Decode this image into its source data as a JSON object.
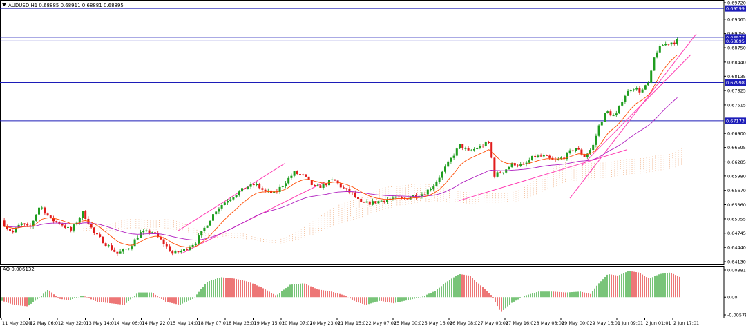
{
  "header": {
    "symbol_line": "AUDUSD,H1  0.68885 0.68911 0.68881 0.68895",
    "ao_label": "AO 0.006132"
  },
  "colors": {
    "bull": "#1f9d1f",
    "bear": "#e11c1c",
    "hline": "#1c1cb8",
    "ema_fast": "#ff4a00",
    "ema_slow": "#b020c0",
    "trend": "#ff3fb4",
    "cloud": "#f0b084",
    "price_tag_bg": "#1c1cb8",
    "price_tag_fg": "#ffffff"
  },
  "chart_data": [
    {
      "type": "candlestick",
      "series_name": "AUDUSD,H1",
      "ylim": [
        0.6413,
        0.6972
      ],
      "y_ticks": [
        "0.69720",
        "0.69365",
        "0.69055",
        "0.68750",
        "0.68440",
        "0.68135",
        "0.67825",
        "0.67515",
        "0.67210",
        "0.66900",
        "0.66595",
        "0.66285",
        "0.65980",
        "0.65670",
        "0.65360",
        "0.65055",
        "0.64745",
        "0.64440",
        "0.64130"
      ],
      "x_ticks": [
        "11 May 2020",
        "12 May 06:01",
        "12 May 22:01",
        "13 May 14:01",
        "14 May 06:01",
        "14 May 22:01",
        "15 May 14:01",
        "18 May 07:01",
        "18 May 23:01",
        "19 May 15:01",
        "20 May 07:01",
        "20 May 23:01",
        "21 May 15:01",
        "22 May 07:01",
        "25 May 00:01",
        "25 May 16:01",
        "26 May 08:01",
        "27 May 00:01",
        "27 May 16:01",
        "28 May 08:01",
        "29 May 00:01",
        "29 May 16:01",
        "1 Jun 09:01",
        "2 Jun 01:01",
        "2 Jun 17:01"
      ],
      "price_path": [
        [
          0,
          0.651
        ],
        [
          10,
          0.649
        ],
        [
          20,
          0.6475
        ],
        [
          32,
          0.6495
        ],
        [
          45,
          0.6485
        ],
        [
          60,
          0.6535
        ],
        [
          75,
          0.6505
        ],
        [
          90,
          0.6495
        ],
        [
          105,
          0.648
        ],
        [
          122,
          0.652
        ],
        [
          138,
          0.6475
        ],
        [
          155,
          0.6452
        ],
        [
          172,
          0.643
        ],
        [
          190,
          0.6445
        ],
        [
          205,
          0.6475
        ],
        [
          222,
          0.6478
        ],
        [
          238,
          0.6455
        ],
        [
          252,
          0.643
        ],
        [
          268,
          0.6438
        ],
        [
          285,
          0.6455
        ],
        [
          300,
          0.649
        ],
        [
          315,
          0.6525
        ],
        [
          330,
          0.6545
        ],
        [
          345,
          0.656
        ],
        [
          360,
          0.6575
        ],
        [
          372,
          0.658
        ],
        [
          385,
          0.6565
        ],
        [
          400,
          0.656
        ],
        [
          415,
          0.6585
        ],
        [
          428,
          0.6605
        ],
        [
          442,
          0.6598
        ],
        [
          458,
          0.6572
        ],
        [
          470,
          0.6578
        ],
        [
          485,
          0.659
        ],
        [
          498,
          0.6572
        ],
        [
          512,
          0.656
        ],
        [
          525,
          0.6538
        ],
        [
          540,
          0.654
        ],
        [
          555,
          0.6545
        ],
        [
          570,
          0.655
        ],
        [
          585,
          0.6548
        ],
        [
          600,
          0.6555
        ],
        [
          615,
          0.656
        ],
        [
          628,
          0.6575
        ],
        [
          640,
          0.66
        ],
        [
          655,
          0.6635
        ],
        [
          668,
          0.6665
        ],
        [
          680,
          0.665
        ],
        [
          695,
          0.666
        ],
        [
          710,
          0.667
        ],
        [
          718,
          0.66
        ],
        [
          730,
          0.6608
        ],
        [
          745,
          0.6625
        ],
        [
          760,
          0.662
        ],
        [
          775,
          0.664
        ],
        [
          790,
          0.664
        ],
        [
          805,
          0.663
        ],
        [
          820,
          0.664
        ],
        [
          835,
          0.666
        ],
        [
          848,
          0.664
        ],
        [
          860,
          0.666
        ],
        [
          870,
          0.671
        ],
        [
          880,
          0.6738
        ],
        [
          893,
          0.6725
        ],
        [
          905,
          0.677
        ],
        [
          918,
          0.679
        ],
        [
          930,
          0.678
        ],
        [
          942,
          0.68
        ],
        [
          950,
          0.686
        ],
        [
          960,
          0.688
        ],
        [
          970,
          0.6885
        ],
        [
          982,
          0.68895
        ]
      ],
      "horizontal_lines": [
        {
          "price": 0.69599,
          "label": "0.69599"
        },
        {
          "price": 0.68977,
          "label": "0.68977"
        },
        {
          "price": 0.68895,
          "label": "0.68895"
        },
        {
          "price": 0.67998,
          "label": "0.67998"
        },
        {
          "price": 0.67173,
          "label": "0.67173"
        }
      ],
      "grid": false,
      "legend": "none"
    },
    {
      "type": "bar",
      "series_name": "AO 0.006132",
      "ylim": [
        -0.005788,
        0.008814
      ],
      "y_ticks": [
        "0.008814",
        "0.00",
        "-0.005788"
      ],
      "zero_label": "0.00",
      "ao_path": [
        [
          0,
          -0.001
        ],
        [
          20,
          -0.0025
        ],
        [
          40,
          -0.003
        ],
        [
          55,
          -0.0005
        ],
        [
          70,
          0.0025
        ],
        [
          85,
          -0.0005
        ],
        [
          100,
          -0.001
        ],
        [
          120,
          0.0005
        ],
        [
          140,
          -0.0015
        ],
        [
          160,
          -0.002
        ],
        [
          180,
          -0.0025
        ],
        [
          200,
          0.0015
        ],
        [
          220,
          0.0015
        ],
        [
          240,
          -0.0015
        ],
        [
          260,
          -0.0025
        ],
        [
          280,
          -0.0005
        ],
        [
          300,
          0.005
        ],
        [
          320,
          0.0065
        ],
        [
          340,
          0.006
        ],
        [
          360,
          0.005
        ],
        [
          380,
          0.003
        ],
        [
          400,
          0.0005
        ],
        [
          420,
          0.004
        ],
        [
          440,
          0.0045
        ],
        [
          460,
          0.0025
        ],
        [
          480,
          0.0018
        ],
        [
          500,
          0.0005
        ],
        [
          515,
          -0.0015
        ],
        [
          530,
          -0.0025
        ],
        [
          550,
          -0.0012
        ],
        [
          570,
          -0.002
        ],
        [
          590,
          -0.001
        ],
        [
          610,
          0.0
        ],
        [
          630,
          0.002
        ],
        [
          650,
          0.0055
        ],
        [
          665,
          0.0075
        ],
        [
          680,
          0.007
        ],
        [
          700,
          0.003
        ],
        [
          712,
          0.0005
        ],
        [
          725,
          -0.005
        ],
        [
          740,
          -0.002
        ],
        [
          760,
          0.0005
        ],
        [
          780,
          0.0018
        ],
        [
          800,
          0.0018
        ],
        [
          820,
          0.0015
        ],
        [
          840,
          0.0018
        ],
        [
          855,
          0.001
        ],
        [
          865,
          0.004
        ],
        [
          880,
          0.0075
        ],
        [
          895,
          0.007
        ],
        [
          910,
          0.0085
        ],
        [
          925,
          0.008
        ],
        [
          940,
          0.006
        ],
        [
          955,
          0.0075
        ],
        [
          970,
          0.008
        ],
        [
          985,
          0.0065
        ]
      ]
    }
  ]
}
